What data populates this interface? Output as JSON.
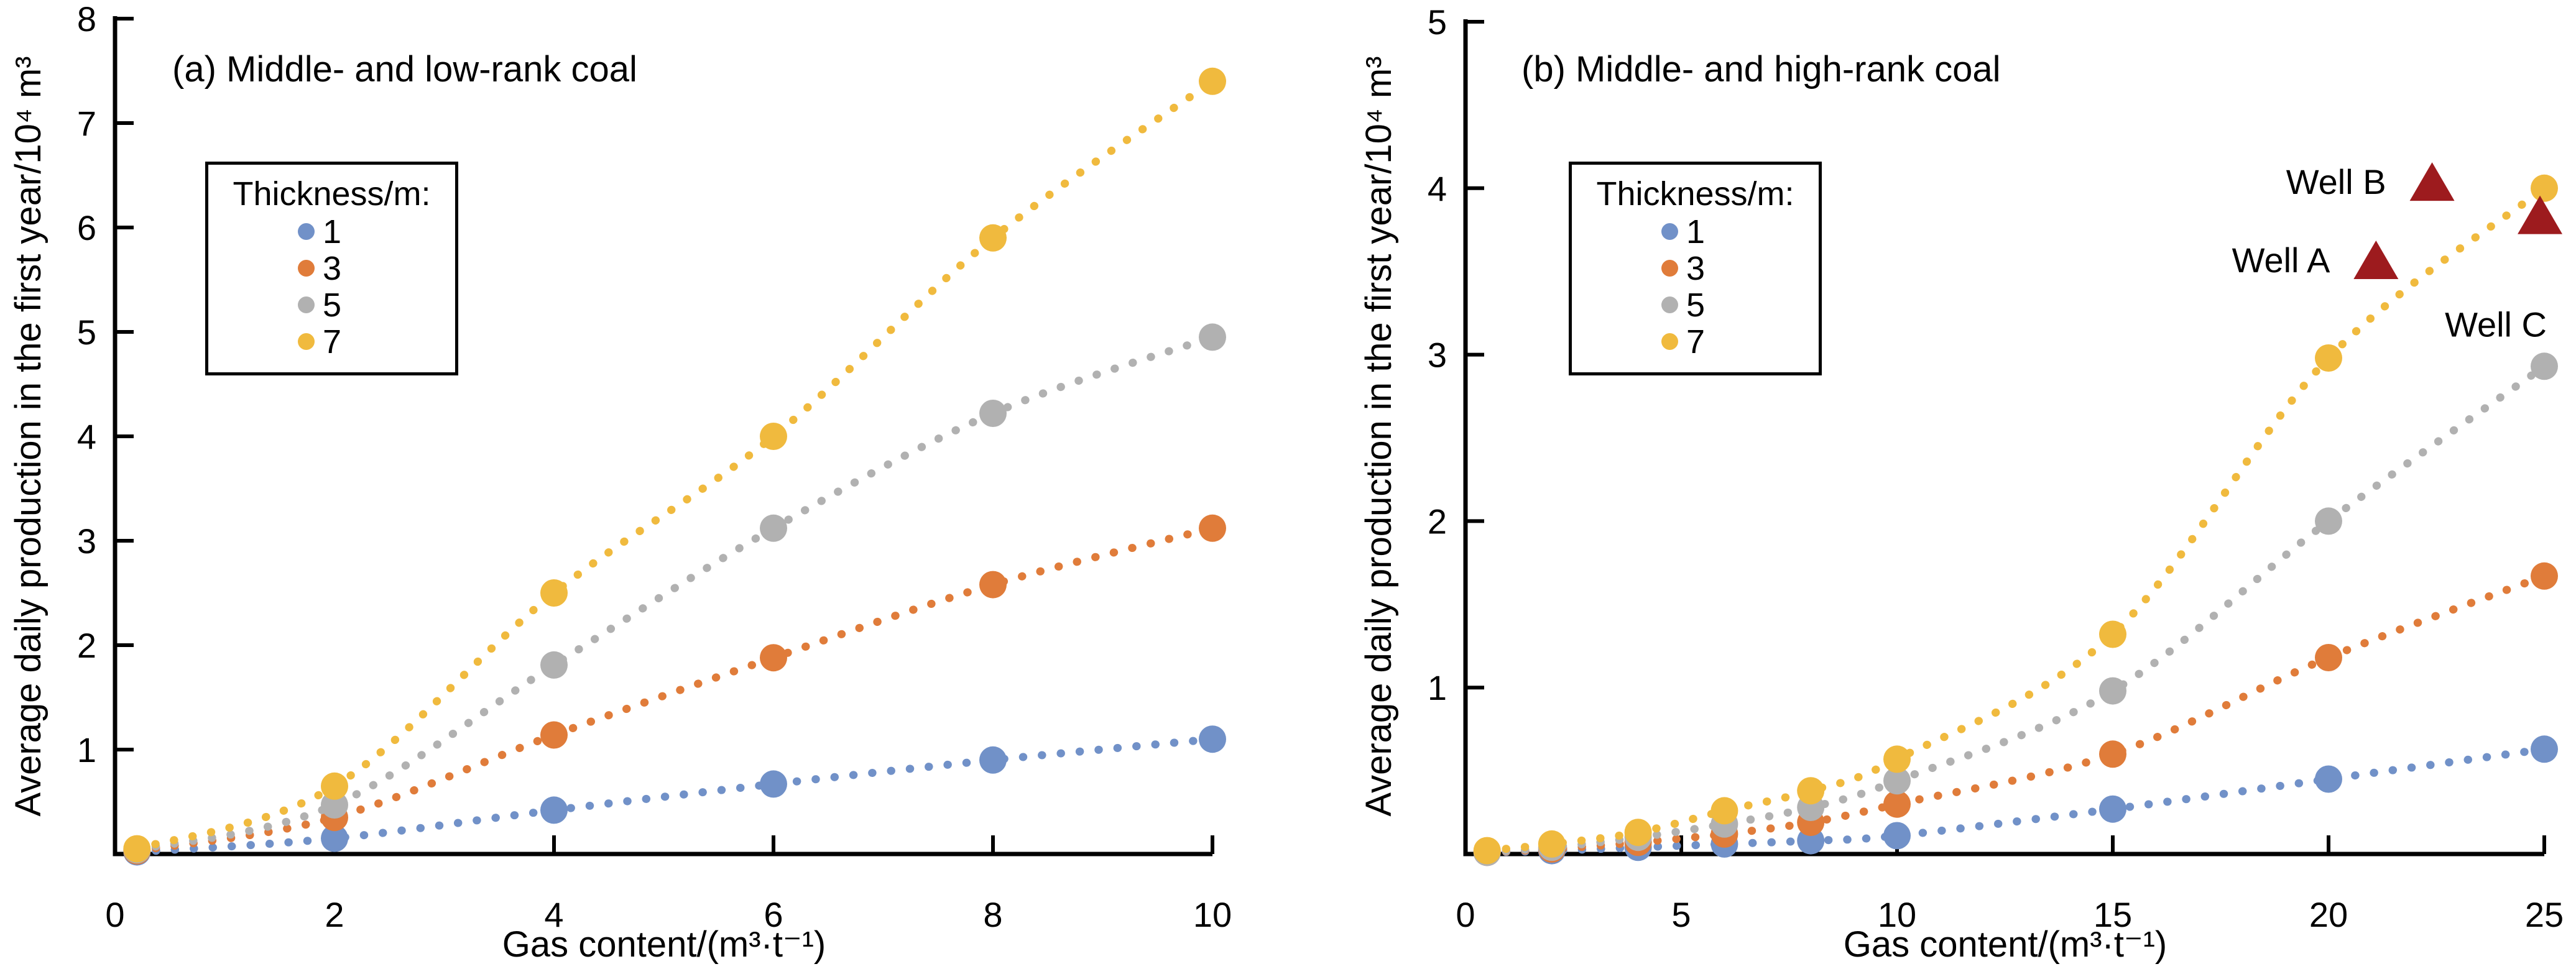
{
  "figure": {
    "background": "#ffffff",
    "axis_color": "#000000",
    "well_marker_color": "#9D1B1E"
  },
  "chart_data": [
    {
      "type": "scatter",
      "title": "(a) Middle- and low-rank coal",
      "xlabel": "Gas content/(m³·t⁻¹)",
      "ylabel": "Average daily production in the first year/10⁴ m³",
      "xlim": [
        0,
        10
      ],
      "ylim": [
        0,
        8
      ],
      "xticks": [
        0,
        2,
        4,
        6,
        8,
        10
      ],
      "yticks": [
        1,
        2,
        3,
        4,
        5,
        6,
        7,
        8
      ],
      "grid": false,
      "legend": {
        "title": "Thickness/m:",
        "position": "upper-left"
      },
      "line_style": "dotted",
      "series": [
        {
          "name": "1",
          "color": "#7191C8",
          "x": [
            0.2,
            2,
            4,
            6,
            8,
            10
          ],
          "y": [
            0.02,
            0.15,
            0.42,
            0.67,
            0.9,
            1.1
          ]
        },
        {
          "name": "3",
          "color": "#E07C3A",
          "x": [
            0.2,
            2,
            4,
            6,
            8,
            10
          ],
          "y": [
            0.03,
            0.35,
            1.14,
            1.88,
            2.58,
            3.12
          ]
        },
        {
          "name": "5",
          "color": "#B1B1B1",
          "x": [
            0.2,
            2,
            4,
            6,
            8,
            10
          ],
          "y": [
            0.04,
            0.47,
            1.81,
            3.12,
            4.22,
            4.95
          ]
        },
        {
          "name": "7",
          "color": "#F0BA3E",
          "x": [
            0.2,
            2,
            4,
            6,
            8,
            10
          ],
          "y": [
            0.05,
            0.65,
            2.5,
            4.0,
            5.9,
            7.4
          ]
        }
      ]
    },
    {
      "type": "scatter",
      "title": "(b) Middle- and high-rank coal",
      "xlabel": "Gas content/(m³·t⁻¹)",
      "ylabel": "Average daily production in the first year/10⁴ m³",
      "xlim": [
        0,
        25
      ],
      "ylim": [
        0,
        5
      ],
      "xticks": [
        0,
        5,
        10,
        15,
        20,
        25
      ],
      "yticks": [
        1,
        2,
        3,
        4,
        5
      ],
      "grid": false,
      "legend": {
        "title": "Thickness/m:",
        "position": "upper-left"
      },
      "line_style": "dotted",
      "series": [
        {
          "name": "1",
          "color": "#7191C8",
          "x": [
            0.5,
            2,
            4,
            6,
            8,
            10,
            15,
            20,
            25
          ],
          "y": [
            0.01,
            0.02,
            0.04,
            0.06,
            0.08,
            0.11,
            0.27,
            0.45,
            0.63
          ]
        },
        {
          "name": "3",
          "color": "#E07C3A",
          "x": [
            0.5,
            2,
            4,
            6,
            8,
            10,
            15,
            20,
            25
          ],
          "y": [
            0.01,
            0.03,
            0.07,
            0.12,
            0.19,
            0.3,
            0.6,
            1.18,
            1.67
          ]
        },
        {
          "name": "5",
          "color": "#B1B1B1",
          "x": [
            0.5,
            2,
            4,
            6,
            8,
            10,
            15,
            20,
            25
          ],
          "y": [
            0.01,
            0.04,
            0.1,
            0.18,
            0.28,
            0.44,
            0.98,
            2.0,
            2.93
          ]
        },
        {
          "name": "7",
          "color": "#F0BA3E",
          "x": [
            0.5,
            2,
            4,
            6,
            8,
            10,
            15,
            20,
            25
          ],
          "y": [
            0.02,
            0.06,
            0.13,
            0.26,
            0.38,
            0.57,
            1.32,
            2.98,
            4.0
          ]
        }
      ],
      "wells": [
        {
          "label": "Well A",
          "x": 21.1,
          "y": 3.57
        },
        {
          "label": "Well B",
          "x": 22.4,
          "y": 4.04
        },
        {
          "label": "Well C",
          "x": 24.9,
          "y": 3.84
        }
      ]
    }
  ]
}
